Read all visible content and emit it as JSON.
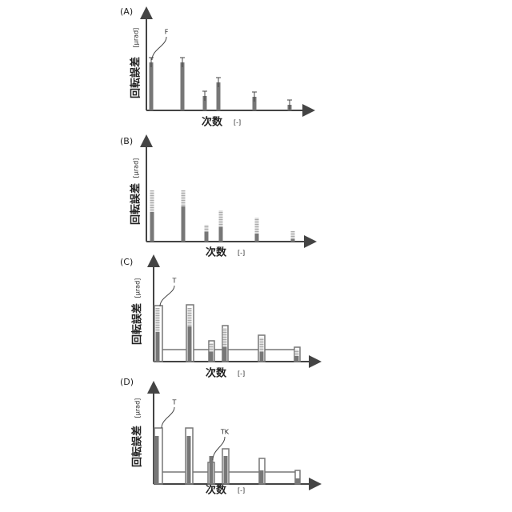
{
  "panels": [
    {
      "label": "(A)",
      "y_label": "回転誤差",
      "y_unit": "[μrad]",
      "x_label": "次数",
      "x_unit": "[-]",
      "annotations": [
        "F"
      ]
    },
    {
      "label": "(B)",
      "y_label": "回転誤差",
      "y_unit": "[μrad]",
      "x_label": "次数",
      "x_unit": "[-]",
      "annotations": []
    },
    {
      "label": "(C)",
      "y_label": "回転誤差",
      "y_unit": "[μrad]",
      "x_label": "次数",
      "x_unit": "[-]",
      "annotations": [
        "T"
      ]
    },
    {
      "label": "(D)",
      "y_label": "回転誤差",
      "y_unit": "[μrad]",
      "x_label": "次数",
      "x_unit": "[-]",
      "annotations": [
        "T",
        "TK"
      ]
    }
  ]
}
